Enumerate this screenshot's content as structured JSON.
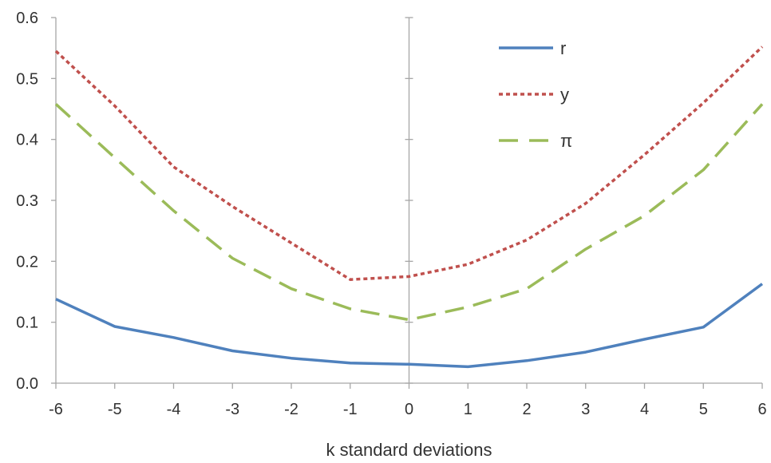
{
  "chart_data": {
    "type": "line",
    "xlabel": "k standard deviations",
    "ylabel": "",
    "x": [
      -6,
      -5,
      -4,
      -3,
      -2,
      -1,
      0,
      1,
      2,
      3,
      4,
      5,
      6
    ],
    "x_tick_labels": [
      "-6",
      "-5",
      "-4",
      "-3",
      "-2",
      "-1",
      "0",
      "1",
      "2",
      "3",
      "4",
      "5",
      "6"
    ],
    "y_tick_labels": [
      "0.0",
      "0.1",
      "0.2",
      "0.3",
      "0.4",
      "0.5",
      "0.6"
    ],
    "xlim": [
      -6,
      6
    ],
    "ylim": [
      0,
      0.6
    ],
    "grid": false,
    "legend_position": "top-right",
    "series": [
      {
        "name": "r",
        "style": "solid",
        "color": "#4F81BD",
        "values": [
          0.138,
          0.093,
          0.075,
          0.053,
          0.041,
          0.033,
          0.031,
          0.027,
          0.037,
          0.051,
          0.072,
          0.092,
          0.163
        ]
      },
      {
        "name": "y",
        "style": "dotted",
        "color": "#C0504D",
        "values": [
          0.545,
          0.455,
          0.355,
          0.29,
          0.23,
          0.17,
          0.175,
          0.195,
          0.235,
          0.295,
          0.375,
          0.46,
          0.552
        ]
      },
      {
        "name": "π",
        "style": "dashed",
        "color": "#9BBB59",
        "values": [
          0.458,
          0.37,
          0.283,
          0.205,
          0.155,
          0.122,
          0.104,
          0.125,
          0.155,
          0.22,
          0.275,
          0.35,
          0.458
        ]
      }
    ]
  }
}
